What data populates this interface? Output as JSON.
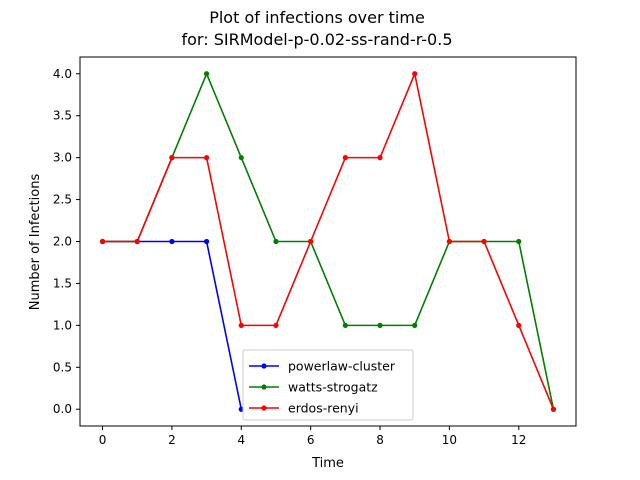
{
  "chart_data": {
    "type": "line",
    "title": [
      "Plot of infections over time",
      "for: SIRModel-p-0.02-ss-rand-r-0.5"
    ],
    "xlabel": "Time",
    "ylabel": "Number of Infections",
    "xlim": [
      -0.65,
      13.65
    ],
    "ylim": [
      -0.2,
      4.2
    ],
    "xticks": [
      0,
      2,
      4,
      6,
      8,
      10,
      12
    ],
    "xtick_labels": [
      "0",
      "2",
      "4",
      "6",
      "8",
      "10",
      "12"
    ],
    "yticks": [
      0,
      0.5,
      1,
      1.5,
      2,
      2.5,
      3,
      3.5,
      4
    ],
    "ytick_labels": [
      "0.0",
      "0.5",
      "1.0",
      "1.5",
      "2.0",
      "2.5",
      "3.0",
      "3.5",
      "4.0"
    ],
    "grid": false,
    "legend_position": "lower-center",
    "series": [
      {
        "name": "powerlaw-cluster",
        "color": "#0000ff",
        "x": [
          0,
          1,
          2,
          3,
          4
        ],
        "y": [
          2,
          2,
          2,
          2,
          0
        ]
      },
      {
        "name": "watts-strogatz",
        "color": "#008000",
        "x": [
          0,
          1,
          2,
          3,
          4,
          5,
          6,
          7,
          8,
          9,
          10,
          11,
          12,
          13
        ],
        "y": [
          2,
          2,
          3,
          4,
          3,
          2,
          2,
          1,
          1,
          1,
          2,
          2,
          2,
          0
        ]
      },
      {
        "name": "erdos-renyi",
        "color": "#ff0000",
        "x": [
          0,
          1,
          2,
          3,
          4,
          5,
          6,
          7,
          8,
          9,
          10,
          11,
          12,
          13
        ],
        "y": [
          2,
          2,
          3,
          3,
          1,
          1,
          2,
          3,
          3,
          4,
          2,
          2,
          1,
          0
        ]
      }
    ]
  }
}
